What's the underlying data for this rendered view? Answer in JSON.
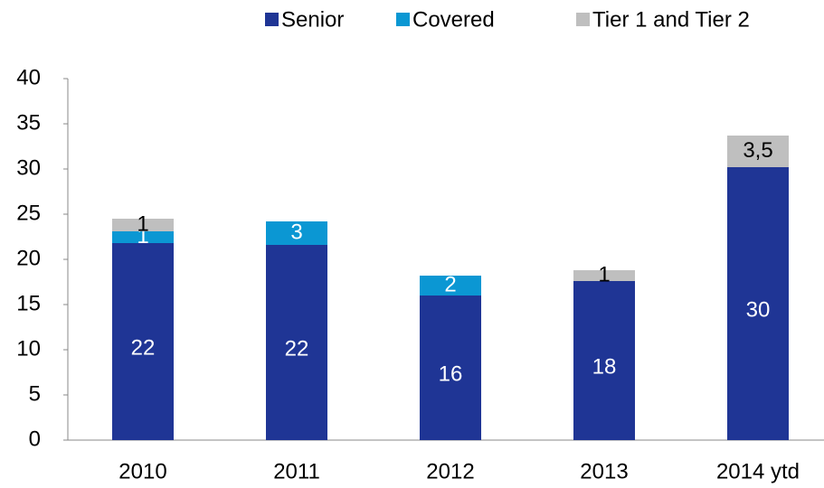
{
  "chart_data": {
    "type": "bar",
    "stacked": true,
    "categories": [
      "2010",
      "2011",
      "2012",
      "2013",
      "2014 ytd"
    ],
    "series": [
      {
        "name": "Senior",
        "color": "#1f3595",
        "label_color": "#ffffff",
        "values": [
          21.8,
          21.6,
          16,
          17.6,
          30.2
        ],
        "value_labels": [
          "22",
          "22",
          "16",
          "18",
          "30"
        ]
      },
      {
        "name": "Covered",
        "color": "#0b97d3",
        "label_color": "#ffffff",
        "values": [
          1.3,
          2.6,
          2.2,
          null,
          null
        ],
        "value_labels": [
          "1",
          "3",
          "2",
          null,
          null
        ]
      },
      {
        "name": "Tier 1 and Tier 2",
        "color": "#bfbfbf",
        "label_color": "#000000",
        "values": [
          1.4,
          null,
          null,
          1.2,
          3.5
        ],
        "value_labels": [
          "1",
          null,
          null,
          "1",
          "3,5"
        ]
      }
    ],
    "ylim": [
      0,
      40
    ],
    "yticks": [
      0,
      5,
      10,
      15,
      20,
      25,
      30,
      35,
      40
    ],
    "legend": "top-right"
  }
}
